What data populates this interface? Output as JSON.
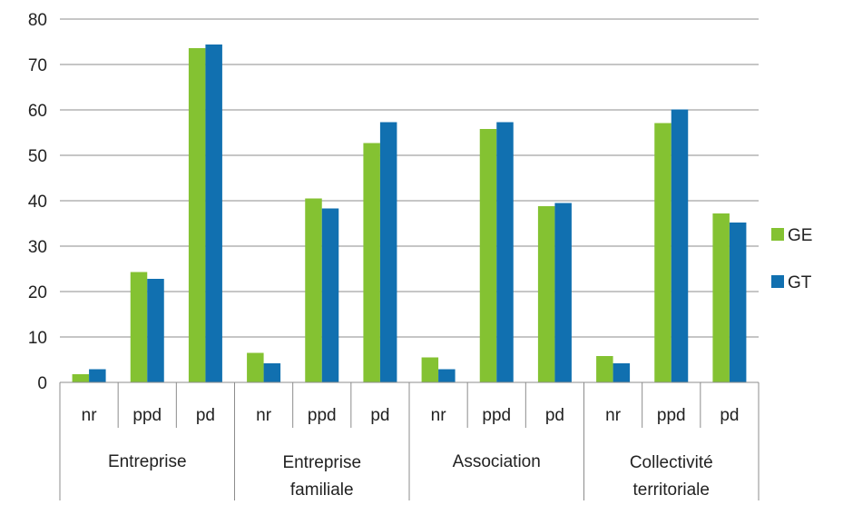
{
  "chart_data": {
    "type": "bar",
    "title": "",
    "xlabel": "",
    "ylabel": "",
    "ylim": [
      0,
      80
    ],
    "yticks": [
      0,
      10,
      20,
      30,
      40,
      50,
      60,
      70,
      80
    ],
    "grid": true,
    "legend_position": "right",
    "groups": [
      {
        "label": "Entreprise",
        "label_lines": [
          "Entreprise"
        ],
        "categories": [
          "nr",
          "ppd",
          "pd"
        ]
      },
      {
        "label": "Entreprise familiale",
        "label_lines": [
          "Entreprise",
          "familiale"
        ],
        "categories": [
          "nr",
          "ppd",
          "pd"
        ]
      },
      {
        "label": "Association",
        "label_lines": [
          "Association"
        ],
        "categories": [
          "nr",
          "ppd",
          "pd"
        ]
      },
      {
        "label": "Collectivité territoriale",
        "label_lines": [
          "Collectivité",
          "territoriale"
        ],
        "categories": [
          "nr",
          "ppd",
          "pd"
        ]
      }
    ],
    "series": [
      {
        "name": "GE",
        "color": "#84c232",
        "values": [
          1.8,
          24.3,
          73.6,
          6.5,
          40.5,
          52.7,
          5.5,
          55.8,
          38.8,
          5.8,
          57.1,
          37.2
        ]
      },
      {
        "name": "GT",
        "color": "#1170b0",
        "values": [
          2.9,
          22.8,
          74.4,
          4.2,
          38.3,
          57.3,
          2.9,
          57.3,
          39.5,
          4.2,
          60.1,
          35.2
        ]
      }
    ]
  }
}
